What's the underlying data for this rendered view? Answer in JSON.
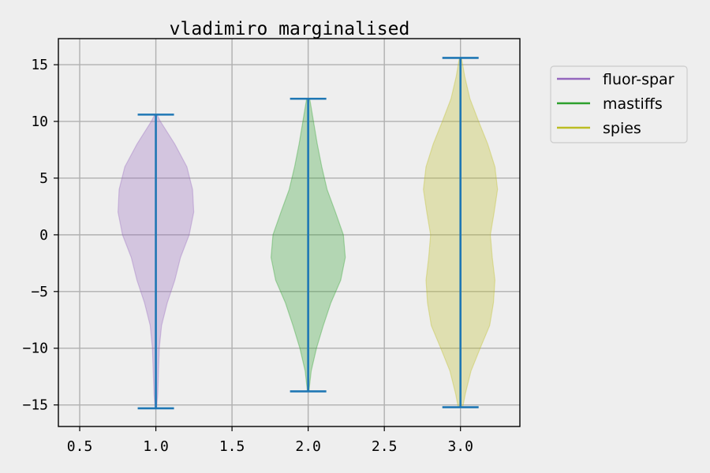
{
  "chart_data": {
    "type": "violin",
    "title": "vladimiro marginalised",
    "xlabel": "",
    "ylabel": "",
    "xlim": [
      0.36,
      3.39
    ],
    "ylim": [
      -16.9,
      17.3
    ],
    "xticks": [
      0.5,
      1.0,
      1.5,
      2.0,
      2.5,
      3.0
    ],
    "xtick_labels": [
      "0.5",
      "1.0",
      "1.5",
      "2.0",
      "2.5",
      "3.0"
    ],
    "yticks": [
      15,
      10,
      5,
      0,
      -5,
      -10,
      -15
    ],
    "ytick_labels": [
      "15",
      "10",
      "5",
      "0",
      "−5",
      "−10",
      "−15"
    ],
    "grid": true,
    "legend_position": "outside right",
    "extrema_color": "#1f77b4",
    "series": [
      {
        "name": "fluor-spar",
        "position": 1.0,
        "color": "#9467bd",
        "min": -15.3,
        "max": 10.6,
        "profile": [
          [
            -15.3,
            0.02
          ],
          [
            -14,
            0.05
          ],
          [
            -12,
            0.07
          ],
          [
            -10,
            0.09
          ],
          [
            -8,
            0.15
          ],
          [
            -6,
            0.3
          ],
          [
            -4,
            0.5
          ],
          [
            -2,
            0.65
          ],
          [
            0,
            0.88
          ],
          [
            2,
            1.0
          ],
          [
            4,
            0.97
          ],
          [
            6,
            0.82
          ],
          [
            8,
            0.5
          ],
          [
            10,
            0.12
          ],
          [
            10.6,
            0.03
          ]
        ]
      },
      {
        "name": "mastiffs",
        "position": 2.0,
        "color": "#2ca02c",
        "min": -13.8,
        "max": 12.0,
        "profile": [
          [
            -13.8,
            0.02
          ],
          [
            -12,
            0.08
          ],
          [
            -10,
            0.22
          ],
          [
            -8,
            0.4
          ],
          [
            -6,
            0.6
          ],
          [
            -4,
            0.86
          ],
          [
            -2,
            0.98
          ],
          [
            0,
            0.93
          ],
          [
            2,
            0.72
          ],
          [
            4,
            0.5
          ],
          [
            6,
            0.36
          ],
          [
            8,
            0.24
          ],
          [
            10,
            0.14
          ],
          [
            12,
            0.04
          ]
        ]
      },
      {
        "name": "spies",
        "position": 3.0,
        "color": "#bcbd22",
        "min": -15.2,
        "max": 15.6,
        "profile": [
          [
            -15.2,
            0.06
          ],
          [
            -14,
            0.13
          ],
          [
            -12,
            0.28
          ],
          [
            -10,
            0.52
          ],
          [
            -8,
            0.77
          ],
          [
            -6,
            0.87
          ],
          [
            -4,
            0.91
          ],
          [
            -2,
            0.84
          ],
          [
            0,
            0.79
          ],
          [
            2,
            0.89
          ],
          [
            4,
            0.98
          ],
          [
            6,
            0.91
          ],
          [
            8,
            0.72
          ],
          [
            10,
            0.48
          ],
          [
            12,
            0.25
          ],
          [
            14,
            0.11
          ],
          [
            15.6,
            0.03
          ]
        ]
      }
    ]
  }
}
